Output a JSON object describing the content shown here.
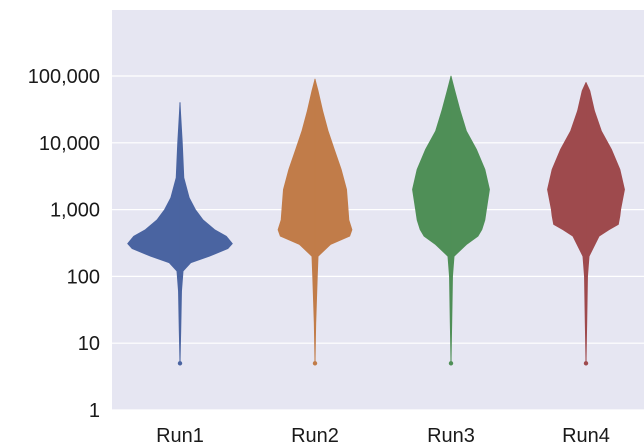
{
  "chart_data": {
    "type": "violin",
    "title": "",
    "xlabel": "",
    "ylabel": "",
    "y_scale": "log",
    "ylim": [
      1,
      400000
    ],
    "y_ticks": [
      1,
      10,
      100,
      1000,
      10000,
      100000
    ],
    "y_tick_labels": [
      "1",
      "10",
      "100",
      "1,000",
      "10,000",
      "100,000"
    ],
    "categories": [
      "Run1",
      "Run2",
      "Run3",
      "Run4"
    ],
    "grid": true,
    "background_color": "#e6e6f2",
    "grid_color": "#ffffff",
    "series": [
      {
        "category": "Run1",
        "color": "#4a64a1",
        "min": 5,
        "max": 40000,
        "profile": [
          [
            5,
            0.0
          ],
          [
            15,
            0.01
          ],
          [
            60,
            0.02
          ],
          [
            120,
            0.04
          ],
          [
            160,
            0.14
          ],
          [
            200,
            0.38
          ],
          [
            260,
            0.62
          ],
          [
            310,
            0.68
          ],
          [
            400,
            0.6
          ],
          [
            500,
            0.45
          ],
          [
            700,
            0.3
          ],
          [
            1000,
            0.2
          ],
          [
            1500,
            0.12
          ],
          [
            3000,
            0.05
          ],
          [
            10000,
            0.03
          ],
          [
            40000,
            0.0
          ]
        ]
      },
      {
        "category": "Run2",
        "color": "#c17c49",
        "min": 5,
        "max": 90000,
        "profile": [
          [
            5,
            0.0
          ],
          [
            20,
            0.01
          ],
          [
            100,
            0.03
          ],
          [
            200,
            0.04
          ],
          [
            300,
            0.2
          ],
          [
            400,
            0.45
          ],
          [
            500,
            0.48
          ],
          [
            700,
            0.44
          ],
          [
            1000,
            0.43
          ],
          [
            2000,
            0.41
          ],
          [
            4000,
            0.34
          ],
          [
            8000,
            0.25
          ],
          [
            15000,
            0.17
          ],
          [
            30000,
            0.1
          ],
          [
            60000,
            0.04
          ],
          [
            90000,
            0.0
          ]
        ]
      },
      {
        "category": "Run3",
        "color": "#4f8f57",
        "min": 5,
        "max": 100000,
        "profile": [
          [
            5,
            0.0
          ],
          [
            20,
            0.01
          ],
          [
            100,
            0.02
          ],
          [
            200,
            0.04
          ],
          [
            300,
            0.2
          ],
          [
            400,
            0.35
          ],
          [
            500,
            0.4
          ],
          [
            700,
            0.44
          ],
          [
            1000,
            0.46
          ],
          [
            2000,
            0.5
          ],
          [
            4000,
            0.44
          ],
          [
            8000,
            0.33
          ],
          [
            15000,
            0.2
          ],
          [
            30000,
            0.12
          ],
          [
            60000,
            0.05
          ],
          [
            100000,
            0.0
          ]
        ]
      },
      {
        "category": "Run4",
        "color": "#9e4a4d",
        "min": 5,
        "max": 80000,
        "profile": [
          [
            5,
            0.0
          ],
          [
            20,
            0.01
          ],
          [
            100,
            0.02
          ],
          [
            200,
            0.04
          ],
          [
            400,
            0.17
          ],
          [
            500,
            0.3
          ],
          [
            600,
            0.42
          ],
          [
            800,
            0.44
          ],
          [
            1000,
            0.45
          ],
          [
            2000,
            0.5
          ],
          [
            4000,
            0.44
          ],
          [
            8000,
            0.33
          ],
          [
            15000,
            0.2
          ],
          [
            30000,
            0.11
          ],
          [
            60000,
            0.05
          ],
          [
            80000,
            0.0
          ]
        ]
      }
    ]
  }
}
